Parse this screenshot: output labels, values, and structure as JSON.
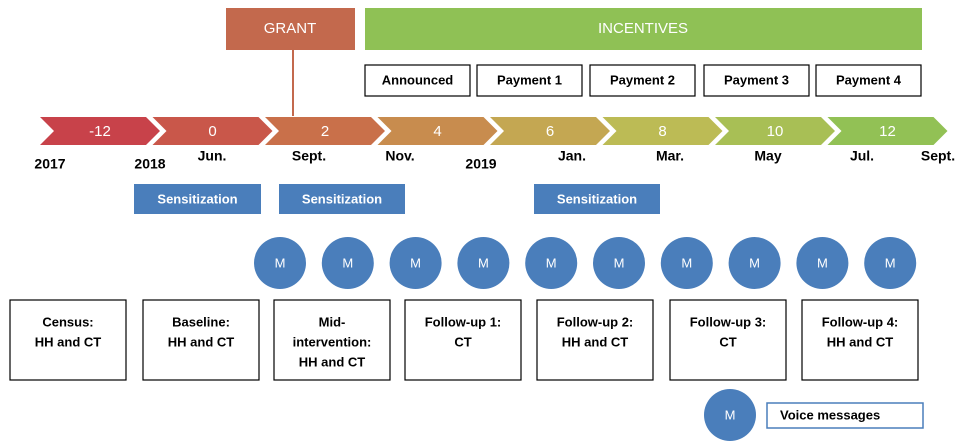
{
  "header": {
    "grant": "GRANT",
    "incentives": "INCENTIVES"
  },
  "payments": [
    "Announced",
    "Payment 1",
    "Payment 2",
    "Payment 3",
    "Payment 4"
  ],
  "timeline": [
    {
      "label": "-12",
      "color": "#c8424a"
    },
    {
      "label": "0",
      "color": "#c9574a"
    },
    {
      "label": "2",
      "color": "#c9704a"
    },
    {
      "label": "4",
      "color": "#c88c4e"
    },
    {
      "label": "6",
      "color": "#c4a752"
    },
    {
      "label": "8",
      "color": "#bcbb55"
    },
    {
      "label": "10",
      "color": "#a8bf55"
    },
    {
      "label": "12",
      "color": "#92c155"
    }
  ],
  "dates": [
    "2017",
    "2018",
    "Jun.",
    "Sept.",
    "Nov.",
    "2019",
    "Jan.",
    "Mar.",
    "May",
    "Jul.",
    "Sept."
  ],
  "sensitization": [
    "Sensitization",
    "Sensitization",
    "Sensitization"
  ],
  "messages": [
    "M",
    "M",
    "M",
    "M",
    "M",
    "M",
    "M",
    "M",
    "M",
    "M"
  ],
  "surveys": [
    [
      "Census:",
      "HH and CT"
    ],
    [
      "Baseline:",
      "HH and CT"
    ],
    [
      "Mid-",
      "intervention:",
      "HH and CT"
    ],
    [
      "Follow-up 1:",
      "CT"
    ],
    [
      "Follow-up 2:",
      "HH and CT"
    ],
    [
      "Follow-up 3:",
      "CT"
    ],
    [
      "Follow-up 4:",
      "HH and CT"
    ]
  ],
  "legend": {
    "symbol": "M",
    "label": "Voice messages"
  }
}
